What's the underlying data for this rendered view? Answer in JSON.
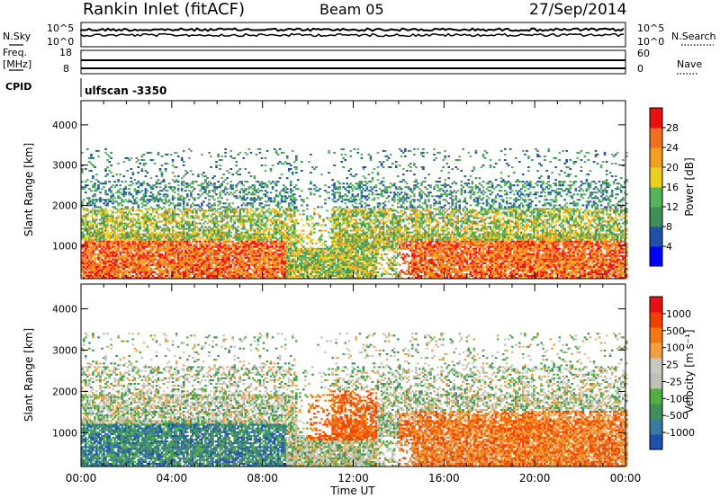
{
  "header": {
    "station": "Rankin Inlet (fitACF)",
    "beam": "Beam 05",
    "date": "27/Sep/2014"
  },
  "top_panel": {
    "nsky_label": "N.Sky",
    "nsearch_label": "N.Search",
    "y_left_ticks": [
      "10^5",
      "10^0"
    ],
    "y_right_ticks": [
      "10^5",
      "10^0"
    ],
    "freq_label_1": "Freq.",
    "freq_label_2": "[MHz]",
    "freq_ticks": [
      "18",
      "8"
    ],
    "nave_label": "Nave",
    "nave_ticks": [
      "60",
      "0"
    ],
    "cpid_label": "CPID",
    "cpid_value": "ulfscan -3350"
  },
  "colors": {
    "power_scale": [
      "#0000ff",
      "#2050a8",
      "#3f8f5a",
      "#55b35a",
      "#e8d020",
      "#f0a020",
      "#f07020",
      "#e81010"
    ],
    "velocity_scale": [
      "#e81010",
      "#f04000",
      "#f07a10",
      "#f0a040",
      "#c8c8c0",
      "#c0c0b8",
      "#4fb040",
      "#3f8f5a",
      "#3a7aa0",
      "#2050b0"
    ]
  },
  "chart_data": [
    {
      "type": "heatmap",
      "title": "Power",
      "xlabel": "",
      "ylabel": "Slant Range [km]",
      "x_ticks": [
        "00:00",
        "04:00",
        "08:00",
        "12:00",
        "16:00",
        "20:00",
        "00:00"
      ],
      "x_range_hours": [
        0,
        24
      ],
      "y_range_km": [
        180,
        4600
      ],
      "y_ticks": [
        1000,
        2000,
        3000,
        4000
      ],
      "colorbar_label": "Power [dB]",
      "colorbar_ticks": [
        "28",
        "24",
        "20",
        "16",
        "12",
        "8",
        "4"
      ],
      "colorbar_range": [
        0,
        32
      ]
    },
    {
      "type": "heatmap",
      "title": "Velocity",
      "xlabel": "Time UT",
      "ylabel": "Slant Range [km]",
      "x_ticks": [
        "00:00",
        "04:00",
        "08:00",
        "12:00",
        "16:00",
        "20:00",
        "00:00"
      ],
      "x_range_hours": [
        0,
        24
      ],
      "y_range_km": [
        180,
        4600
      ],
      "y_ticks": [
        1000,
        2000,
        3000,
        4000
      ],
      "colorbar_label": "Velocity [m s⁻¹]",
      "colorbar_ticks": [
        "1000",
        "500",
        "100",
        "25",
        "-25",
        "-100",
        "-500",
        "-1000"
      ]
    }
  ]
}
